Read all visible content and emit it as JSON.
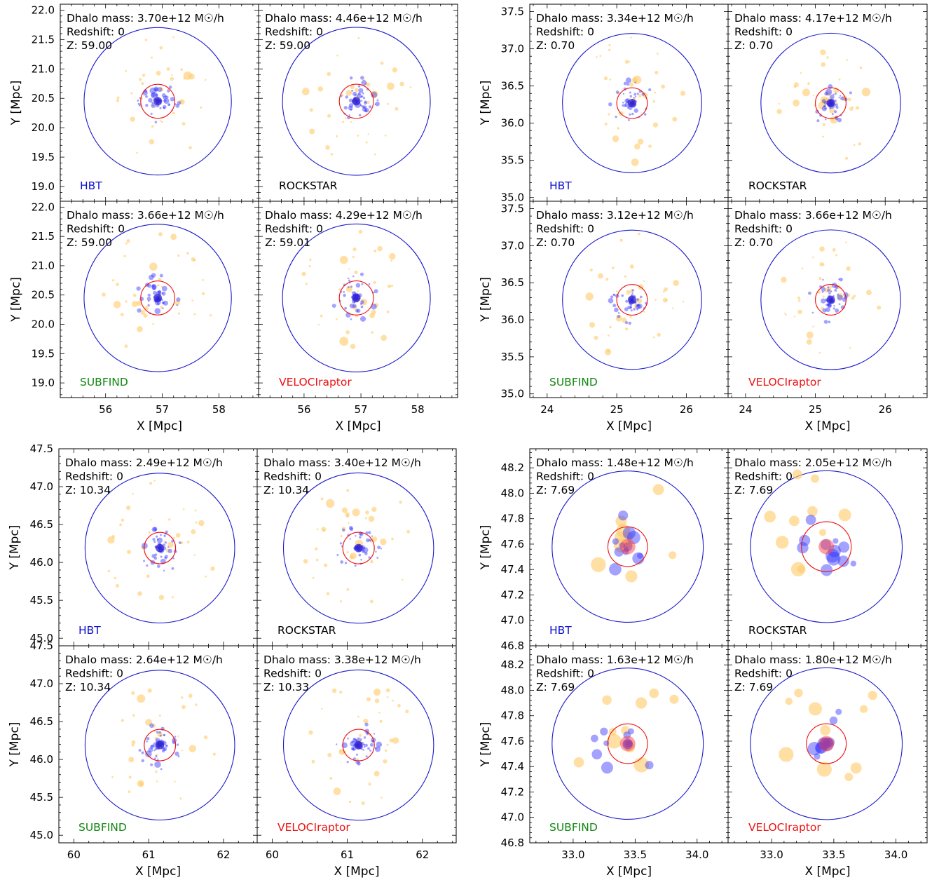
{
  "chart_data": [
    {
      "type": "scatter",
      "group": "top-left",
      "xlabel": "X [Mpc]",
      "ylabel": "Y [Mpc]",
      "xlim": [
        55.2,
        58.7
      ],
      "ylim": [
        18.75,
        22.1
      ],
      "xticks": [
        56,
        57,
        58
      ],
      "yticks": [
        19.0,
        19.5,
        20.0,
        20.5,
        21.0,
        21.5,
        22.0
      ],
      "center": [
        56.92,
        20.45
      ],
      "outer_radius": 1.3,
      "grid": false,
      "panels": [
        {
          "finder": "HBT",
          "finder_color": "#1010cc",
          "mass_text": "Dhalo mass: 3.70e+12 M☉/h",
          "redshift_text": "Redshift: 0",
          "z_text": "Z: 59.00",
          "inner_radius": 0.3
        },
        {
          "finder": "ROCKSTAR",
          "finder_color": "#000000",
          "mass_text": "Dhalo mass: 4.46e+12 M☉/h",
          "redshift_text": "Redshift: 0",
          "z_text": "Z: 59.00",
          "inner_radius": 0.3
        },
        {
          "finder": "SUBFIND",
          "finder_color": "#118811",
          "mass_text": "Dhalo mass: 3.66e+12 M☉/h",
          "redshift_text": "Redshift: 0",
          "z_text": "Z: 59.00",
          "inner_radius": 0.3
        },
        {
          "finder": "VELOCIraptor",
          "finder_color": "#ee1111",
          "mass_text": "Dhalo mass: 4.29e+12 M☉/h",
          "redshift_text": "Redshift: 0",
          "z_text": "Z: 59.01",
          "inner_radius": 0.3
        }
      ]
    },
    {
      "type": "scatter",
      "group": "top-right",
      "xlabel": "X [Mpc]",
      "ylabel": "Y [Mpc]",
      "xlim": [
        23.75,
        26.6
      ],
      "ylim": [
        34.95,
        37.6
      ],
      "xticks": [
        24,
        25,
        26
      ],
      "yticks": [
        35.0,
        35.5,
        36.0,
        36.5,
        37.0,
        37.5
      ],
      "center": [
        25.22,
        36.27
      ],
      "outer_radius": 1.0,
      "grid": false,
      "panels": [
        {
          "finder": "HBT",
          "finder_color": "#1010cc",
          "mass_text": "Dhalo mass: 3.34e+12 M☉/h",
          "redshift_text": "Redshift: 0",
          "z_text": "Z: 0.70",
          "inner_radius": 0.22
        },
        {
          "finder": "ROCKSTAR",
          "finder_color": "#000000",
          "mass_text": "Dhalo mass: 4.17e+12 M☉/h",
          "redshift_text": "Redshift: 0",
          "z_text": "Z: 0.70",
          "inner_radius": 0.22
        },
        {
          "finder": "SUBFIND",
          "finder_color": "#118811",
          "mass_text": "Dhalo mass: 3.12e+12 M☉/h",
          "redshift_text": "Redshift: 0",
          "z_text": "Z: 0.70",
          "inner_radius": 0.22
        },
        {
          "finder": "VELOCIraptor",
          "finder_color": "#ee1111",
          "mass_text": "Dhalo mass: 3.66e+12 M☉/h",
          "redshift_text": "Redshift: 0",
          "z_text": "Z: 0.70",
          "inner_radius": 0.22
        }
      ]
    },
    {
      "type": "scatter",
      "group": "bottom-left",
      "xlabel": "X [Mpc]",
      "ylabel": "Y [Mpc]",
      "xlim": [
        59.8,
        62.45
      ],
      "ylim": [
        44.9,
        47.5
      ],
      "xticks": [
        60,
        61,
        62
      ],
      "yticks": [
        45.0,
        45.5,
        46.0,
        46.5,
        47.0,
        47.5
      ],
      "center": [
        61.15,
        46.19
      ],
      "outer_radius": 1.0,
      "grid": false,
      "panels": [
        {
          "finder": "HBT",
          "finder_color": "#1010cc",
          "mass_text": "Dhalo mass: 2.49e+12 M☉/h",
          "redshift_text": "Redshift: 0",
          "z_text": "Z: 10.34",
          "inner_radius": 0.21
        },
        {
          "finder": "ROCKSTAR",
          "finder_color": "#000000",
          "mass_text": "Dhalo mass: 3.40e+12 M☉/h",
          "redshift_text": "Redshift: 0",
          "z_text": "Z: 10.34",
          "inner_radius": 0.21
        },
        {
          "finder": "SUBFIND",
          "finder_color": "#118811",
          "mass_text": "Dhalo mass: 2.64e+12 M☉/h",
          "redshift_text": "Redshift: 0",
          "z_text": "Z: 10.34",
          "inner_radius": 0.21
        },
        {
          "finder": "VELOCIraptor",
          "finder_color": "#ee1111",
          "mass_text": "Dhalo mass: 3.38e+12 M☉/h",
          "redshift_text": "Redshift: 0",
          "z_text": "Z: 10.33",
          "inner_radius": 0.21
        }
      ]
    },
    {
      "type": "scatter",
      "group": "bottom-right",
      "xlabel": "X [Mpc]",
      "ylabel": "Y [Mpc]",
      "xlim": [
        32.65,
        34.25
      ],
      "ylim": [
        46.8,
        48.35
      ],
      "xticks": [
        33.0,
        33.5,
        34.0
      ],
      "yticks": [
        46.8,
        47.0,
        47.2,
        47.4,
        47.6,
        47.8,
        48.0,
        48.2
      ],
      "center": [
        33.44,
        47.58
      ],
      "outer_radius": 0.61,
      "grid": false,
      "panels": [
        {
          "finder": "HBT",
          "finder_color": "#1010cc",
          "mass_text": "Dhalo mass: 1.48e+12 M☉/h",
          "redshift_text": "Redshift: 0",
          "z_text": "Z: 7.69",
          "inner_radius": 0.16
        },
        {
          "finder": "ROCKSTAR",
          "finder_color": "#000000",
          "mass_text": "Dhalo mass: 2.05e+12 M☉/h",
          "redshift_text": "Redshift: 0",
          "z_text": "Z: 7.69",
          "inner_radius": 0.2
        },
        {
          "finder": "SUBFIND",
          "finder_color": "#118811",
          "mass_text": "Dhalo mass: 1.63e+12 M☉/h",
          "redshift_text": "Redshift: 0",
          "z_text": "Z: 7.69",
          "inner_radius": 0.16
        },
        {
          "finder": "VELOCIraptor",
          "finder_color": "#ee1111",
          "mass_text": "Dhalo mass: 1.80e+12 M☉/h",
          "redshift_text": "Redshift: 0",
          "z_text": "Z: 7.69",
          "inner_radius": 0.16
        }
      ]
    }
  ]
}
